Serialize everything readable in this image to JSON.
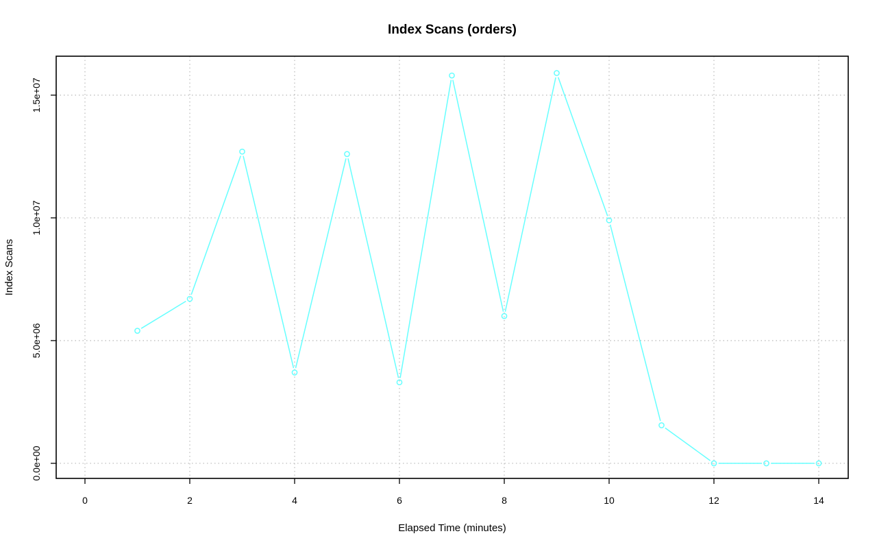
{
  "chart_data": {
    "type": "line",
    "title": "Index Scans (orders)",
    "xlabel": "Elapsed Time (minutes)",
    "ylabel": "Index Scans",
    "xlim": [
      0,
      14
    ],
    "ylim": [
      0,
      16000000
    ],
    "x_ticks": [
      0,
      2,
      4,
      6,
      8,
      10,
      12,
      14
    ],
    "x_tick_labels": [
      "0",
      "2",
      "4",
      "6",
      "8",
      "10",
      "12",
      "14"
    ],
    "y_ticks": [
      0,
      5000000,
      10000000,
      15000000
    ],
    "y_tick_labels": [
      "0.0e+00",
      "5.0e+06",
      "1.0e+07",
      "1.5e+07"
    ],
    "grid": true,
    "colors": {
      "series": "#66ffff",
      "grid": "#bdbdbd",
      "frame": "#000000"
    },
    "series": [
      {
        "x": [
          1,
          2,
          3,
          4,
          5,
          6,
          7,
          8,
          9,
          10,
          11,
          12,
          13,
          14
        ],
        "values": [
          5400000,
          6700000,
          12700000,
          3700000,
          12600000,
          3300000,
          15800000,
          6000000,
          15900000,
          9900000,
          1550000,
          0,
          0,
          0
        ]
      }
    ]
  }
}
